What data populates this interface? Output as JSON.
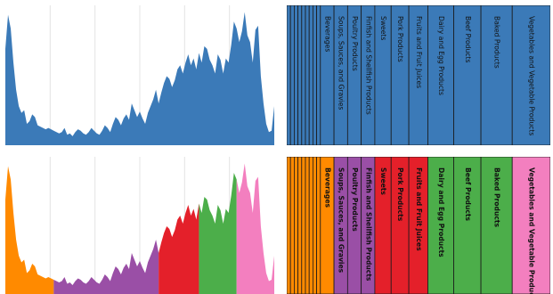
{
  "chart_data": [
    {
      "type": "area",
      "variant": "single-color",
      "color": "#3b7ab8",
      "grid": true,
      "xlim": [
        0,
        100
      ],
      "ylim": [
        0,
        100
      ],
      "x": [
        0,
        1,
        2,
        3,
        4,
        5,
        6,
        7,
        8,
        9,
        10,
        11,
        12,
        13,
        14,
        15,
        16,
        17,
        18,
        19,
        20,
        21,
        22,
        23,
        24,
        25,
        26,
        27,
        28,
        29,
        30,
        31,
        32,
        33,
        34,
        35,
        36,
        37,
        38,
        39,
        40,
        41,
        42,
        43,
        44,
        45,
        46,
        47,
        48,
        49,
        50,
        51,
        52,
        53,
        54,
        55,
        56,
        57,
        58,
        59,
        60,
        61,
        62,
        63,
        64,
        65,
        66,
        67,
        68,
        69,
        70,
        71,
        72,
        73,
        74,
        75,
        76,
        77,
        78,
        79,
        80,
        81,
        82,
        83,
        84,
        85,
        86,
        87,
        88,
        89,
        90,
        91,
        92,
        93,
        94,
        95,
        96,
        97,
        98,
        99,
        100
      ],
      "values": [
        70,
        95,
        85,
        60,
        40,
        28,
        23,
        25,
        15,
        17,
        22,
        20,
        14,
        13,
        12,
        11,
        12,
        11,
        10,
        9,
        8,
        9,
        12,
        7,
        8,
        6,
        9,
        11,
        10,
        8,
        7,
        9,
        12,
        10,
        8,
        7,
        10,
        14,
        12,
        9,
        15,
        20,
        18,
        14,
        19,
        22,
        18,
        30,
        25,
        20,
        24,
        19,
        15,
        23,
        28,
        33,
        40,
        30,
        38,
        45,
        50,
        48,
        42,
        47,
        55,
        58,
        52,
        60,
        66,
        58,
        63,
        55,
        67,
        60,
        72,
        70,
        62,
        58,
        52,
        66,
        62,
        52,
        63,
        60,
        73,
        90,
        85,
        75,
        83,
        97,
        80,
        75,
        60,
        84,
        87,
        50,
        30,
        15,
        9,
        10,
        28
      ],
      "type_note": ""
    },
    {
      "type": "bar",
      "variant": "single-color",
      "color": "#3b7ab8",
      "categories": [
        "Beverages",
        "Soups, Sauces, and Gravies",
        "Poultry Products",
        "Finfish and Shellfish Products",
        "Sweets",
        "Pork Products",
        "Fruits and Fruit Juices",
        "Dairy and Egg Products",
        "Beef Products",
        "Baked Products",
        "Vegetables and Vegetable Products"
      ],
      "thin_bar_count": 9
    },
    {
      "type": "area",
      "variant": "multi-color",
      "grid": true,
      "xlim": [
        0,
        100
      ],
      "ylim": [
        0,
        100
      ],
      "segments": [
        {
          "from": 0,
          "to": 18,
          "color": "#ff8a00"
        },
        {
          "from": 18,
          "to": 57,
          "color": "#9a4fa6"
        },
        {
          "from": 57,
          "to": 72,
          "color": "#e4202a"
        },
        {
          "from": 72,
          "to": 86,
          "color": "#4cae4a"
        },
        {
          "from": 86,
          "to": 100,
          "color": "#f37fbf"
        }
      ]
    },
    {
      "type": "bar",
      "variant": "multi-color",
      "categories": [
        "Beverages",
        "Soups, Sauces, and Gravies",
        "Poultry Products",
        "Finfish and Shellfish Products",
        "Sweets",
        "Pork Products",
        "Fruits and Fruit Juices",
        "Dairy and Egg Products",
        "Beef Products",
        "Baked Products",
        "Vegetables and Vegetable Products"
      ],
      "colors": [
        "#ff8a00",
        "#9a4fa6",
        "#9a4fa6",
        "#9a4fa6",
        "#e4202a",
        "#e4202a",
        "#e4202a",
        "#4cae4a",
        "#4cae4a",
        "#4cae4a",
        "#f37fbf"
      ],
      "thin_bar_count": 9,
      "thin_bar_color": "#ff8a00"
    }
  ]
}
